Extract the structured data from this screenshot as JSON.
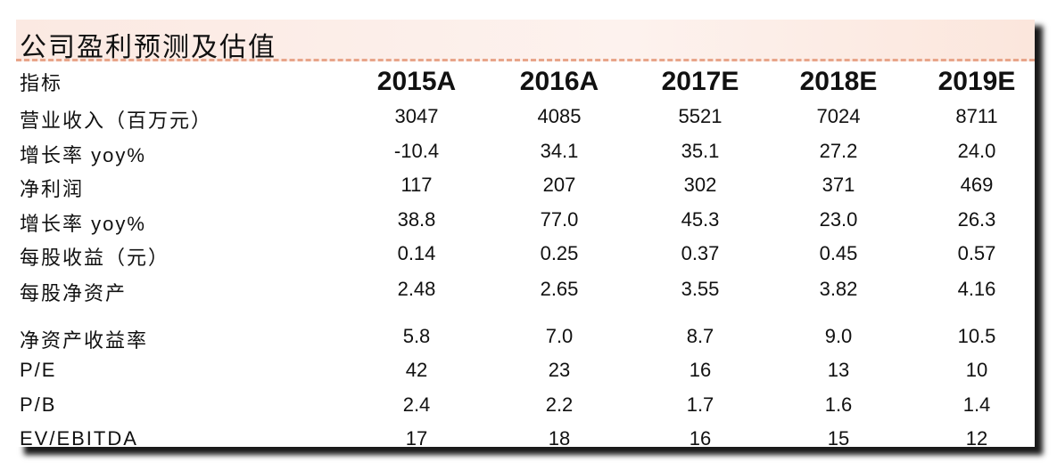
{
  "header": {
    "title": "公司盈利预测及估值"
  },
  "table": {
    "columns": [
      "指标",
      "2015A",
      "2016A",
      "2017E",
      "2018E",
      "2019E"
    ],
    "rows": [
      [
        "营业收入（百万元）",
        "3047",
        "4085",
        "5521",
        "7024",
        "8711"
      ],
      [
        "增长率 yoy%",
        "-10.4",
        "34.1",
        "35.1",
        "27.2",
        "24.0"
      ],
      [
        "净利润",
        "117",
        "207",
        "302",
        "371",
        "469"
      ],
      [
        "增长率 yoy%",
        "38.8",
        "77.0",
        "45.3",
        "23.0",
        "26.3"
      ],
      [
        "每股收益（元）",
        "0.14",
        "0.25",
        "0.37",
        "0.45",
        "0.57"
      ],
      [
        "每股净资产",
        "2.48",
        "2.65",
        "3.55",
        "3.82",
        "4.16"
      ],
      [
        "净资产收益率",
        "5.8",
        "7.0",
        "8.7",
        "9.0",
        "10.5"
      ],
      [
        "P/E",
        "42",
        "23",
        "16",
        "13",
        "10"
      ],
      [
        "P/B",
        "2.4",
        "2.2",
        "1.7",
        "1.6",
        "1.4"
      ],
      [
        "EV/EBITDA",
        "17",
        "18",
        "16",
        "15",
        "12"
      ]
    ]
  }
}
